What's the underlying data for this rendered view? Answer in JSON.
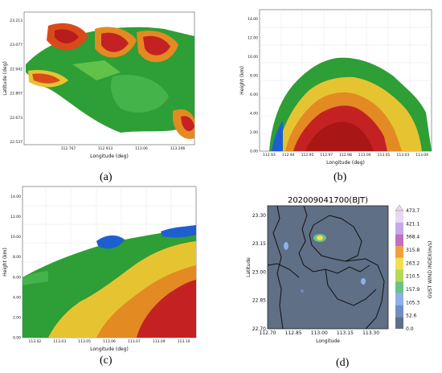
{
  "chart_data": [
    {
      "panel_label": "(a)",
      "type": "heatmap",
      "xlabel": "Longitude (deg)",
      "ylabel": "Latitude (deg)",
      "xticks": [
        "112.767",
        "112.913",
        "113.06",
        "113.206"
      ],
      "yticks": [
        "23.213",
        "23.077",
        "22.942",
        "22.807",
        "22.673",
        "22.537"
      ],
      "grid": false
    },
    {
      "panel_label": "(b)",
      "type": "heatmap",
      "xlabel": "Longitude (deg)",
      "ylabel": "Height (km)",
      "xticks": [
        "112.93",
        "112.94",
        "112.95",
        "112.97",
        "112.98",
        "113.00",
        "113.01",
        "113.03",
        "113.04"
      ],
      "yticks": [
        "0.00",
        "2.00",
        "4.00",
        "6.00",
        "8.00",
        "10.00",
        "12.00",
        "14.00"
      ],
      "ylim": [
        0,
        15
      ],
      "grid": true
    },
    {
      "panel_label": "(c)",
      "type": "heatmap",
      "xlabel": "Longitude (deg)",
      "ylabel": "Height (km)",
      "xticks": [
        "113.02",
        "113.03",
        "113.05",
        "113.06",
        "113.07",
        "113.09",
        "113.10"
      ],
      "yticks": [
        "0.00",
        "2.00",
        "4.00",
        "6.00",
        "8.00",
        "10.00",
        "12.00",
        "14.00"
      ],
      "ylim": [
        0,
        15
      ],
      "grid": true
    },
    {
      "panel_label": "(d)",
      "type": "heatmap",
      "title": "202009041700(BJT)",
      "xlabel": "Longitude",
      "ylabel": "Latitude",
      "xticks": [
        "112.70",
        "112.85",
        "113.00",
        "113.15",
        "113.30"
      ],
      "yticks": [
        "22.70",
        "22.85",
        "23.00",
        "23.15",
        "23.30"
      ],
      "xlim": [
        112.7,
        113.4
      ],
      "ylim": [
        22.7,
        23.35
      ],
      "colorbar": {
        "label": "GUST WIND INDEX(m/s)",
        "ticks": [
          "0.0",
          "52.6",
          "105.3",
          "157.9",
          "210.5",
          "263.2",
          "315.8",
          "368.4",
          "421.1",
          "473.7"
        ],
        "colors": [
          "#5f6f86",
          "#6f8fc0",
          "#8fb0e8",
          "#6cc08a",
          "#b6d85a",
          "#f0e050",
          "#f0a040",
          "#c070c0",
          "#c8a8e8",
          "#e8d8f4"
        ]
      }
    }
  ]
}
